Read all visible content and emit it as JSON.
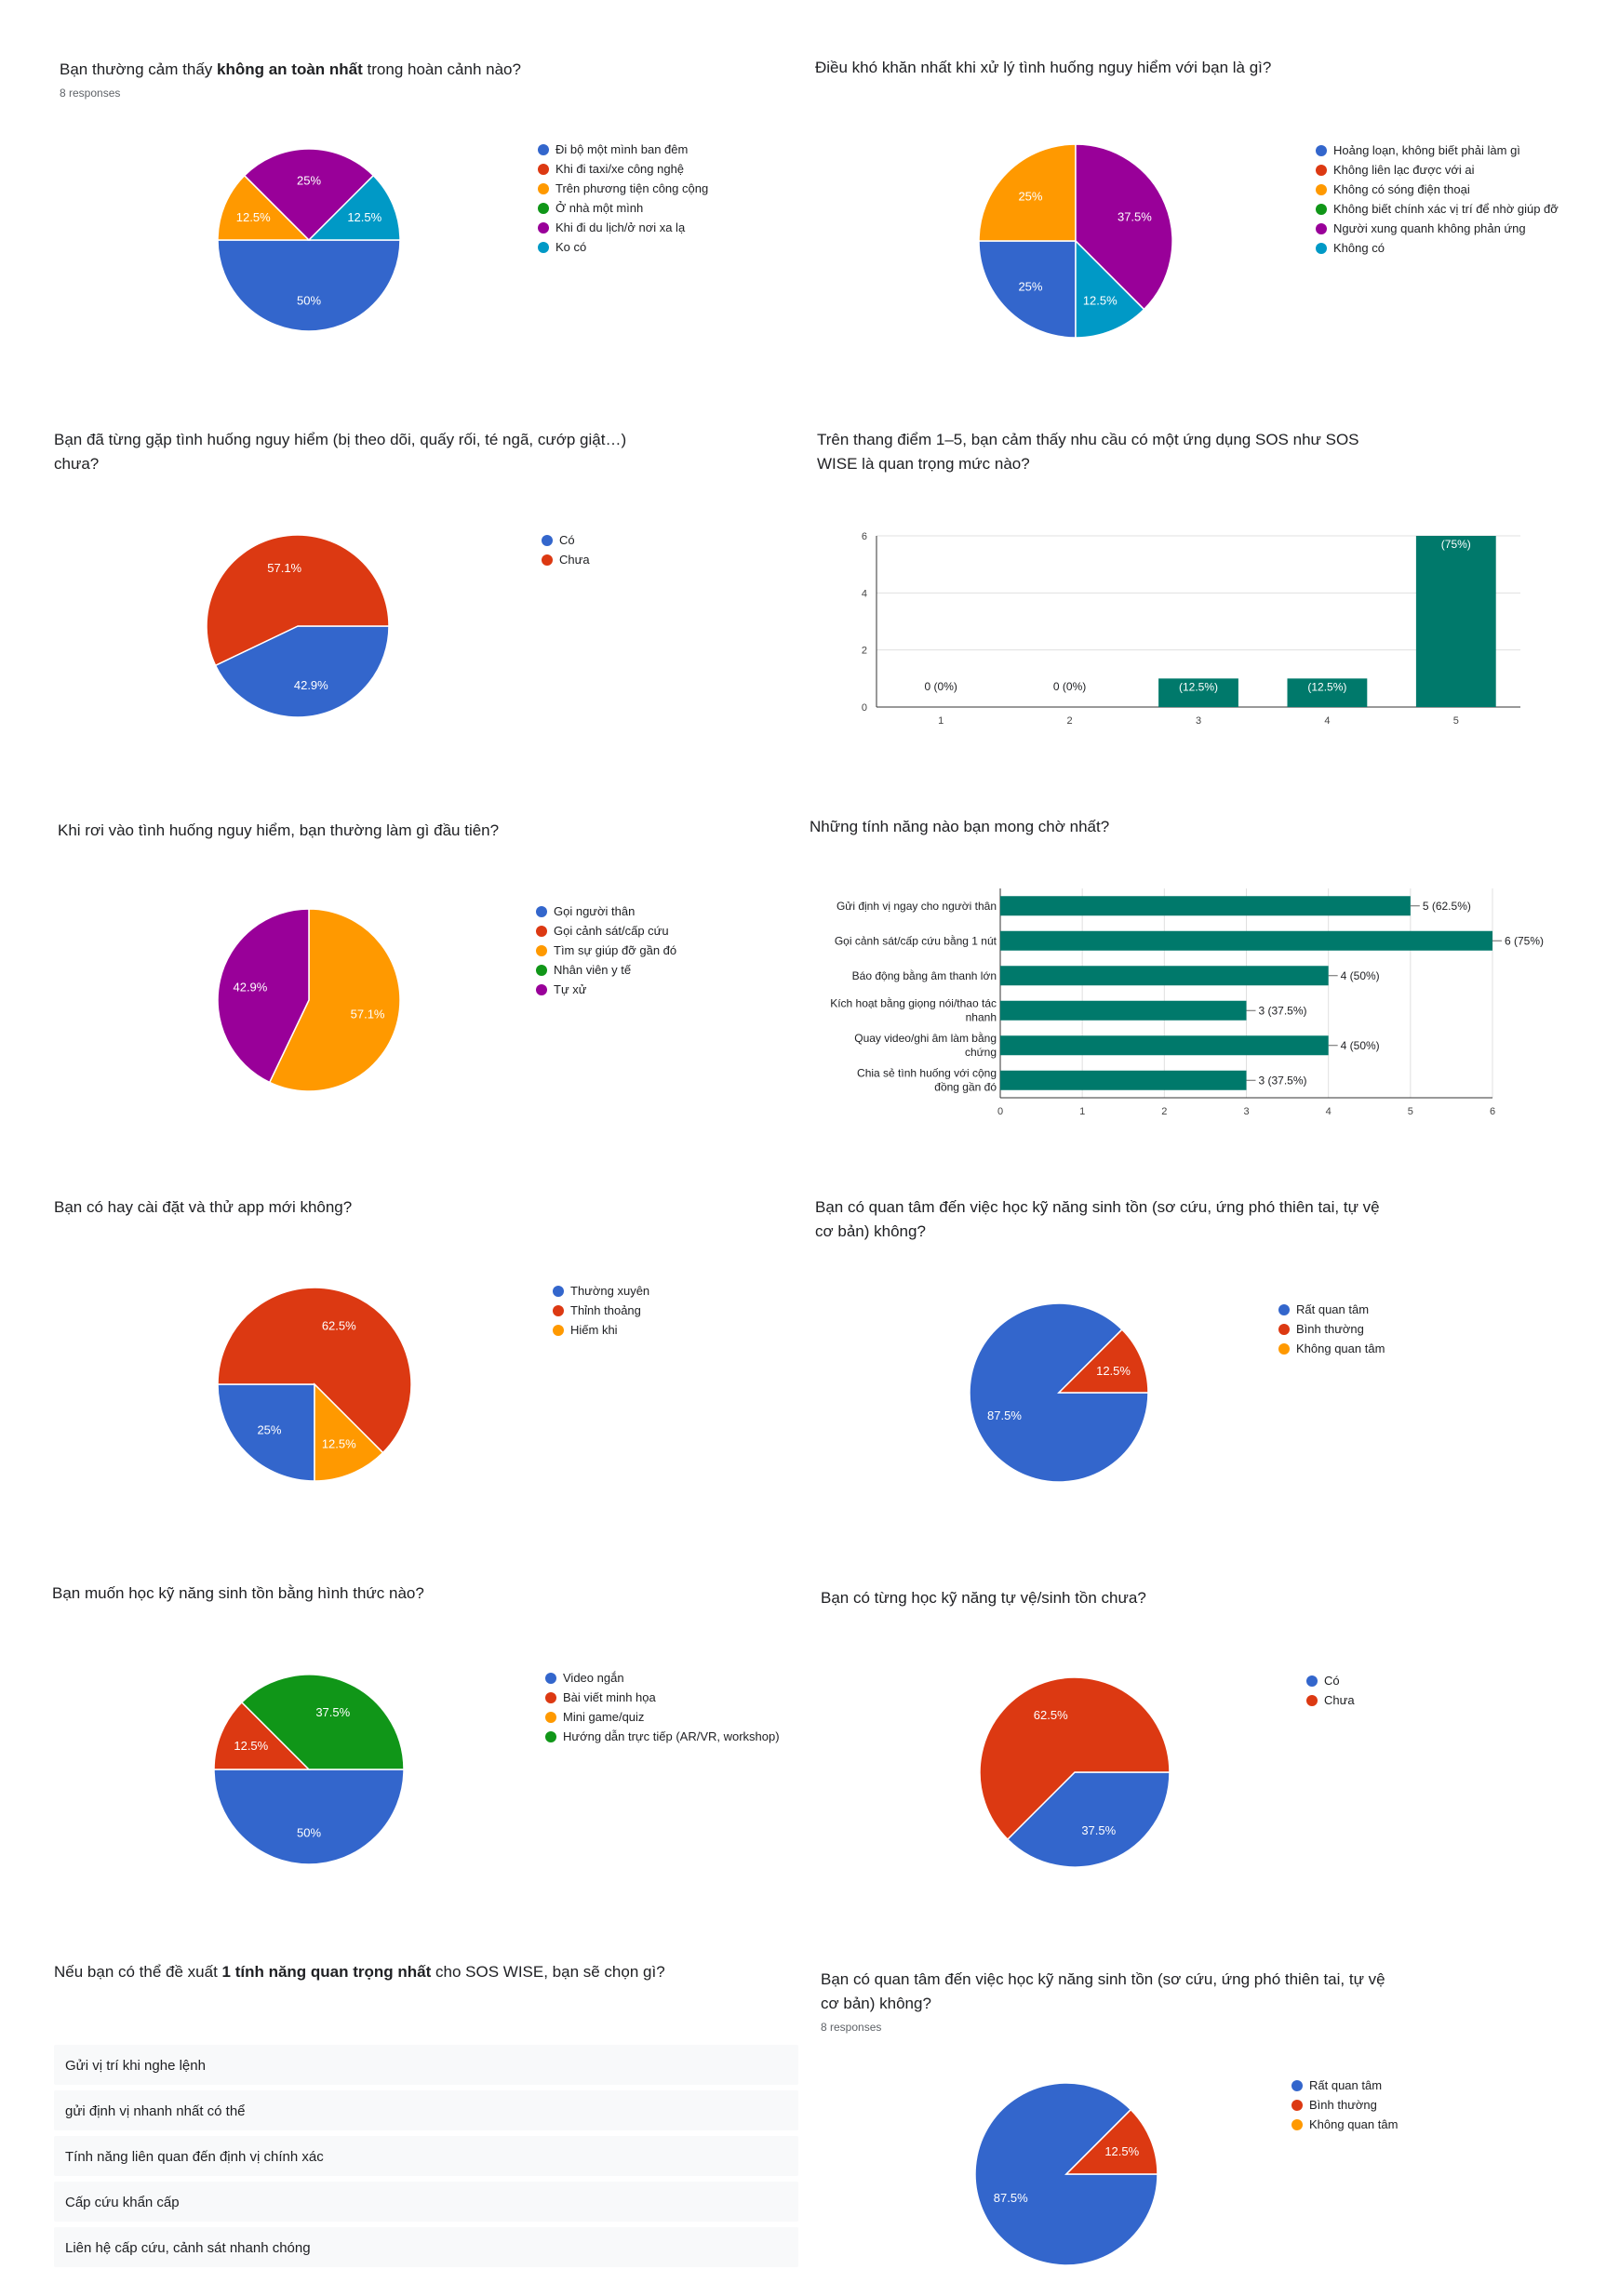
{
  "colors": {
    "blue": "#3366cc",
    "red": "#dc3912",
    "orange": "#ff9900",
    "green": "#109618",
    "purple": "#990099",
    "teal": "#0099c6",
    "bar": "#00796b"
  },
  "chart_data": [
    {
      "type": "pie",
      "title_parts": [
        "Bạn thường cảm thấy ",
        "không an toàn nhất",
        " trong hoàn cảnh nào?"
      ],
      "subtitle": "8 responses",
      "legend": [
        "Đi bộ một mình ban đêm",
        "Khi đi taxi/xe công nghệ",
        "Trên phương tiện công cộng",
        "Ở nhà một mình",
        "Khi đi du lịch/ở nơi xa lạ",
        "Ko có"
      ],
      "legend_colors": [
        "#3366cc",
        "#dc3912",
        "#ff9900",
        "#109618",
        "#990099",
        "#0099c6"
      ],
      "slices": [
        {
          "label": "50%",
          "value": 50,
          "color": "#3366cc"
        },
        {
          "label": "12.5%",
          "value": 12.5,
          "color": "#ff9900"
        },
        {
          "label": "25%",
          "value": 25,
          "color": "#990099"
        },
        {
          "label": "12.5%",
          "value": 12.5,
          "color": "#0099c6"
        }
      ]
    },
    {
      "type": "pie",
      "title": "Điều khó khăn nhất khi xử lý tình huống nguy hiểm với bạn là gì?",
      "legend": [
        "Hoảng loạn, không biết phải làm gì",
        "Không liên lạc được với ai",
        "Không có sóng điện thoại",
        "Không biết chính xác vị trí để nhờ giúp đỡ",
        "Người xung quanh không phản ứng",
        "Không có"
      ],
      "legend_colors": [
        "#3366cc",
        "#dc3912",
        "#ff9900",
        "#109618",
        "#990099",
        "#0099c6"
      ],
      "slices": [
        {
          "label": "25%",
          "value": 25,
          "color": "#3366cc"
        },
        {
          "label": "25%",
          "value": 25,
          "color": "#ff9900"
        },
        {
          "label": "37.5%",
          "value": 37.5,
          "color": "#990099"
        },
        {
          "label": "12.5%",
          "value": 12.5,
          "color": "#0099c6"
        }
      ]
    },
    {
      "type": "pie",
      "title_lines": [
        "Bạn đã từng gặp tình huống nguy hiểm (bị theo dõi, quấy rối, té ngã, cướp giật…)",
        "chưa?"
      ],
      "legend": [
        "Có",
        "Chưa"
      ],
      "legend_colors": [
        "#3366cc",
        "#dc3912"
      ],
      "slices": [
        {
          "label": "42.9%",
          "value": 42.9,
          "color": "#3366cc"
        },
        {
          "label": "57.1%",
          "value": 57.1,
          "color": "#dc3912"
        }
      ]
    },
    {
      "type": "bar",
      "title_lines": [
        "Trên thang điểm 1–5, bạn cảm thấy nhu cầu có một ứng dụng SOS như SOS",
        "WISE là quan trọng mức nào?"
      ],
      "categories": [
        "1",
        "2",
        "3",
        "4",
        "5"
      ],
      "values": [
        0,
        0,
        1,
        1,
        6
      ],
      "value_labels": [
        "0 (0%)",
        "0 (0%)",
        "(12.5%)",
        "(12.5%)",
        "(75%)"
      ],
      "yticks": [
        "0",
        "2",
        "4",
        "6"
      ],
      "ylim": [
        0,
        6
      ]
    },
    {
      "type": "pie",
      "title": "Khi rơi vào tình huống nguy hiểm, bạn thường làm gì đầu tiên?",
      "legend": [
        "Gọi người thân",
        "Gọi cảnh sát/cấp cứu",
        "Tìm sự giúp đỡ gần đó",
        "Nhân viên y tế",
        "Tự xử"
      ],
      "legend_colors": [
        "#3366cc",
        "#dc3912",
        "#ff9900",
        "#109618",
        "#990099"
      ],
      "slices": [
        {
          "label": "57.1%",
          "value": 57.1,
          "color": "#ff9900"
        },
        {
          "label": "42.9%",
          "value": 42.9,
          "color": "#990099"
        }
      ]
    },
    {
      "type": "hbar",
      "title": "Những tính năng nào bạn mong chờ nhất?",
      "categories": [
        [
          "Gửi định vị ngay cho người thân"
        ],
        [
          "Gọi cảnh sát/cấp cứu bằng 1 nút"
        ],
        [
          "Báo động bằng âm thanh lớn"
        ],
        [
          "Kích hoạt bằng giọng nói/thao tác",
          "nhanh"
        ],
        [
          "Quay video/ghi âm làm bằng",
          "chứng"
        ],
        [
          "Chia sẻ tình huống với cộng",
          "đồng gần đó"
        ]
      ],
      "values": [
        5,
        6,
        4,
        3,
        4,
        3
      ],
      "value_labels": [
        "5 (62.5%)",
        "6 (75%)",
        "4 (50%)",
        "3 (37.5%)",
        "4 (50%)",
        "3 (37.5%)"
      ],
      "xticks": [
        "0",
        "1",
        "2",
        "3",
        "4",
        "5",
        "6"
      ],
      "xlim": [
        0,
        6
      ]
    },
    {
      "type": "pie",
      "title": "Bạn có hay cài đặt và thử app mới không?",
      "legend": [
        "Thường xuyên",
        "Thỉnh thoảng",
        "Hiếm khi"
      ],
      "legend_colors": [
        "#3366cc",
        "#dc3912",
        "#ff9900"
      ],
      "slices": [
        {
          "label": "25%",
          "value": 25,
          "color": "#3366cc"
        },
        {
          "label": "62.5%",
          "value": 62.5,
          "color": "#dc3912"
        },
        {
          "label": "12.5%",
          "value": 12.5,
          "color": "#ff9900"
        }
      ]
    },
    {
      "type": "pie",
      "title_lines": [
        "Bạn có quan tâm đến việc học kỹ năng sinh tồn (sơ cứu, ứng phó thiên tai, tự vệ",
        "cơ bản) không?"
      ],
      "legend": [
        "Rất quan tâm",
        "Bình thường",
        "Không quan tâm"
      ],
      "legend_colors": [
        "#3366cc",
        "#dc3912",
        "#ff9900"
      ],
      "slices": [
        {
          "label": "87.5%",
          "value": 87.5,
          "color": "#3366cc"
        },
        {
          "label": "12.5%",
          "value": 12.5,
          "color": "#dc3912"
        }
      ]
    },
    {
      "type": "pie",
      "title": "Bạn muốn học kỹ năng sinh tồn bằng hình thức nào?",
      "legend": [
        "Video ngắn",
        "Bài viết minh họa",
        "Mini game/quiz",
        "Hướng dẫn trực tiếp (AR/VR, workshop)"
      ],
      "legend_colors": [
        "#3366cc",
        "#dc3912",
        "#ff9900",
        "#109618"
      ],
      "slices": [
        {
          "label": "50%",
          "value": 50,
          "color": "#3366cc"
        },
        {
          "label": "12.5%",
          "value": 12.5,
          "color": "#dc3912"
        },
        {
          "label": "37.5%",
          "value": 37.5,
          "color": "#109618"
        }
      ]
    },
    {
      "type": "pie",
      "title": "Bạn có từng học kỹ năng tự vệ/sinh tồn chưa?",
      "legend": [
        "Có",
        "Chưa"
      ],
      "legend_colors": [
        "#3366cc",
        "#dc3912"
      ],
      "slices": [
        {
          "label": "37.5%",
          "value": 37.5,
          "color": "#3366cc"
        },
        {
          "label": "62.5%",
          "value": 62.5,
          "color": "#dc3912"
        }
      ]
    },
    {
      "type": "table",
      "title_parts": [
        "Nếu bạn có thể đề xuất ",
        "1 tính năng quan trọng nhất",
        " cho SOS WISE, bạn sẽ chọn gì?"
      ],
      "responses": [
        "Gửi vị trí khi nghe lệnh",
        "gửi định vị nhanh nhất có thể",
        "Tính năng liên quan đến định vị chính xác",
        "Cấp cứu khẩn cấp",
        "Liên hệ cấp cứu, cảnh sát nhanh chóng"
      ]
    },
    {
      "type": "pie",
      "title_lines": [
        "Bạn có quan tâm đến việc học kỹ năng sinh tồn (sơ cứu, ứng phó thiên tai, tự vệ",
        "cơ bản) không?"
      ],
      "subtitle": "8 responses",
      "legend": [
        "Rất quan tâm",
        "Bình thường",
        "Không quan tâm"
      ],
      "legend_colors": [
        "#3366cc",
        "#dc3912",
        "#ff9900"
      ],
      "slices": [
        {
          "label": "87.5%",
          "value": 87.5,
          "color": "#3366cc"
        },
        {
          "label": "12.5%",
          "value": 12.5,
          "color": "#dc3912"
        }
      ]
    }
  ]
}
